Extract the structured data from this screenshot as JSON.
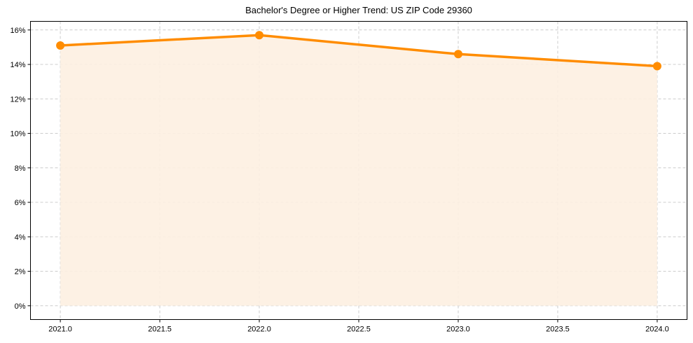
{
  "chart_data": {
    "type": "area",
    "title": "Bachelor's Degree or Higher Trend: US ZIP Code 29360",
    "xlabel": "",
    "ylabel": "",
    "x": [
      2021.0,
      2022.0,
      2023.0,
      2024.0
    ],
    "series": [
      {
        "name": "Bachelor's Degree or Higher",
        "values": [
          15.1,
          15.7,
          14.6,
          13.9
        ],
        "unit": "%",
        "color": "#ff8c00",
        "fill_color": "#fdf0e1"
      }
    ],
    "xlim": [
      2020.85,
      2024.15
    ],
    "ylim": [
      -0.8,
      16.5
    ],
    "x_ticks": [
      "2021.0",
      "2021.5",
      "2022.0",
      "2022.5",
      "2023.0",
      "2023.5",
      "2024.0"
    ],
    "y_ticks": [
      "0%",
      "2%",
      "4%",
      "6%",
      "8%",
      "10%",
      "12%",
      "14%",
      "16%"
    ],
    "grid": true,
    "legend": null
  }
}
